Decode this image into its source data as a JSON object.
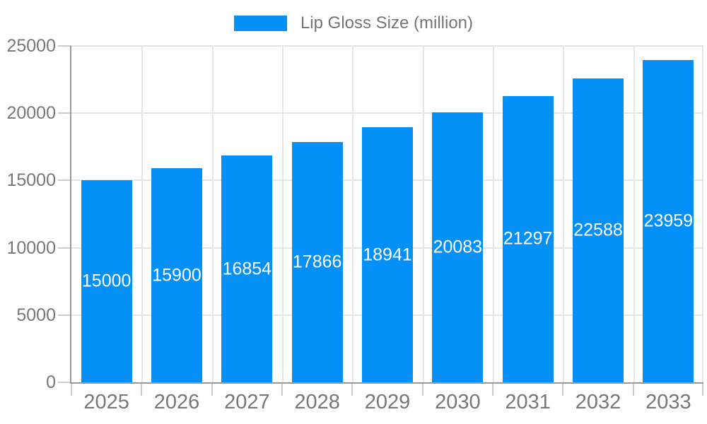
{
  "chart_data": {
    "type": "bar",
    "legend": "Lip Gloss Size (million)",
    "legend_position": "top-center",
    "categories": [
      "2025",
      "2026",
      "2027",
      "2028",
      "2029",
      "2030",
      "2031",
      "2032",
      "2033"
    ],
    "values": [
      15000,
      15900,
      16854,
      17866,
      18941,
      20083,
      21297,
      22588,
      23959
    ],
    "xlabel": "",
    "ylabel": "",
    "ylim": [
      0,
      25000
    ],
    "yticks": [
      0,
      5000,
      10000,
      15000,
      20000,
      25000
    ],
    "grid": true,
    "value_labels_inside_bars": true,
    "colors": {
      "bar": "#0590F8",
      "axis_line": "#999999",
      "gridline": "#e6e6e6",
      "tick_mark": "#cccccc",
      "axis_label_text": "#777777",
      "legend_text": "#757575",
      "value_label_text": "#ffffff",
      "background": "#ffffff"
    }
  }
}
